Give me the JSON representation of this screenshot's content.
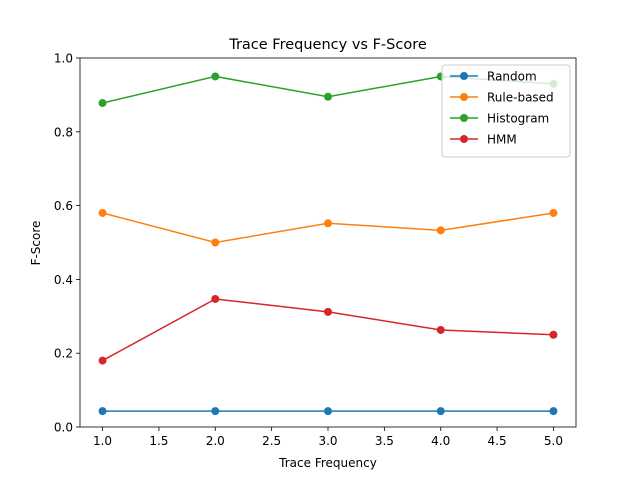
{
  "chart_data": {
    "type": "line",
    "title": "Trace Frequency vs F-Score",
    "xlabel": "Trace Frequency",
    "ylabel": "F-Score",
    "x": [
      1.0,
      2.0,
      3.0,
      4.0,
      5.0
    ],
    "xlim": [
      0.8,
      5.2
    ],
    "ylim": [
      0.0,
      1.0
    ],
    "xticks": [
      1.0,
      1.5,
      2.0,
      2.5,
      3.0,
      3.5,
      4.0,
      4.5,
      5.0
    ],
    "xtick_labels": [
      "1.0",
      "1.5",
      "2.0",
      "2.5",
      "3.0",
      "3.5",
      "4.0",
      "4.5",
      "5.0"
    ],
    "yticks": [
      0.0,
      0.2,
      0.4,
      0.6,
      0.8,
      1.0
    ],
    "ytick_labels": [
      "0.0",
      "0.2",
      "0.4",
      "0.6",
      "0.8",
      "1.0"
    ],
    "grid": false,
    "legend_position": "top-right",
    "series": [
      {
        "name": "Random",
        "color": "#1f77b4",
        "values": [
          0.043,
          0.043,
          0.043,
          0.043,
          0.043
        ]
      },
      {
        "name": "Rule-based",
        "color": "#ff7f0e",
        "values": [
          0.58,
          0.5,
          0.552,
          0.533,
          0.58
        ]
      },
      {
        "name": "Histogram",
        "color": "#2ca02c",
        "values": [
          0.878,
          0.95,
          0.895,
          0.95,
          0.93
        ]
      },
      {
        "name": "HMM",
        "color": "#d62728",
        "values": [
          0.18,
          0.347,
          0.312,
          0.263,
          0.25
        ]
      }
    ]
  }
}
